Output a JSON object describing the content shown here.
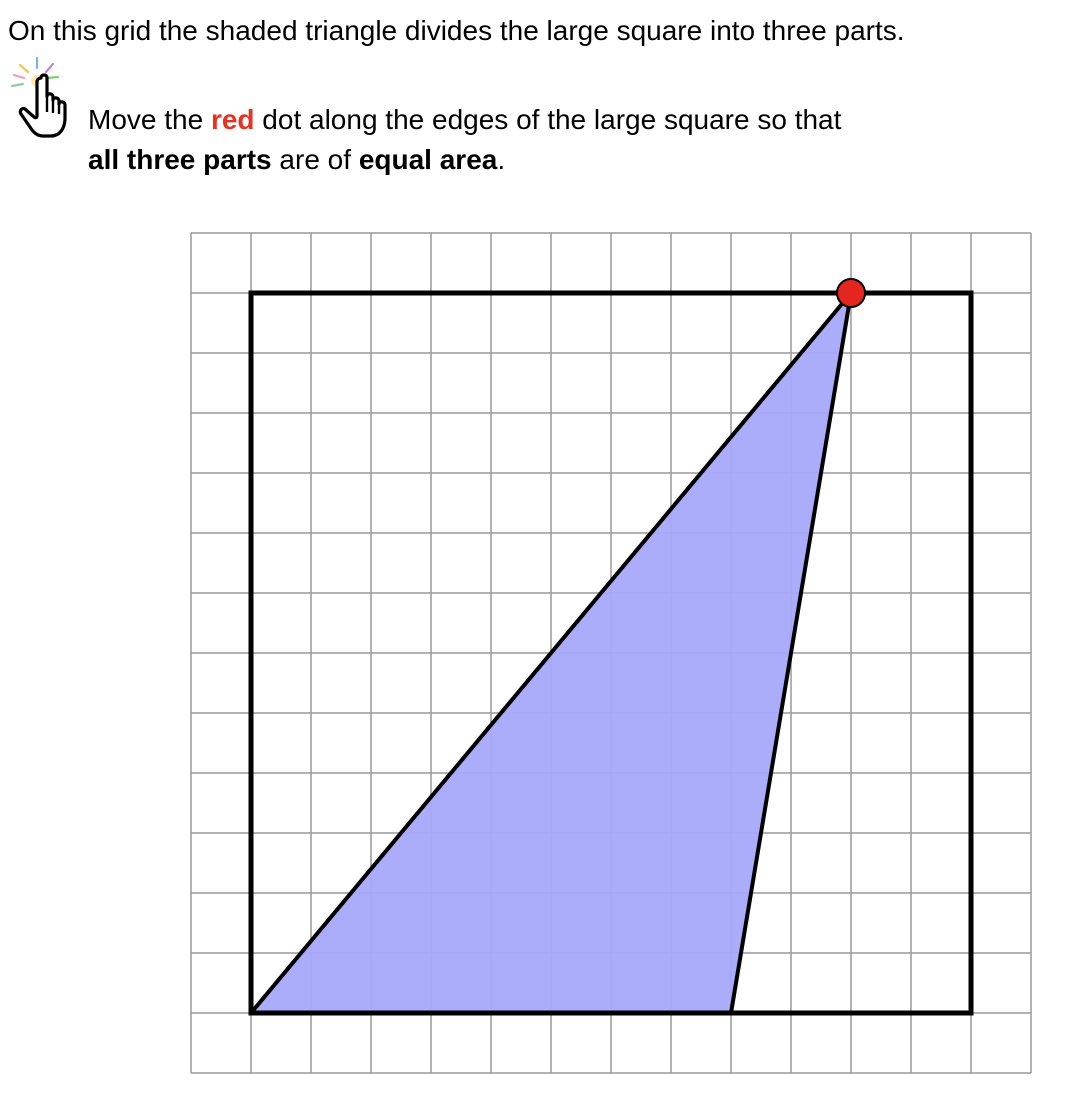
{
  "intro_text": "On this grid the shaded triangle divides the large square into three parts.",
  "instruction": {
    "part1": "Move the ",
    "red_word": "red",
    "part2": " dot along the edges of the large square so that",
    "bold1": "all three parts",
    "part3": " are of ",
    "bold2": "equal area",
    "part4": "."
  },
  "icons": {
    "hint": "pointing-hand-icon"
  },
  "grid": {
    "columns": 14,
    "rows": 14
  },
  "square": {
    "from": [
      1,
      1
    ],
    "to": [
      13,
      13
    ]
  },
  "triangle": {
    "fixed_vertex_a": [
      1,
      13
    ],
    "fixed_vertex_b": [
      9,
      13
    ],
    "draggable_vertex": [
      11,
      1
    ]
  },
  "colors": {
    "accent_red": "#e53222",
    "dot_fill": "#e5261e",
    "triangle_fill": "#a6a8fa",
    "grid_line": "#999999",
    "square_line": "#000000"
  }
}
